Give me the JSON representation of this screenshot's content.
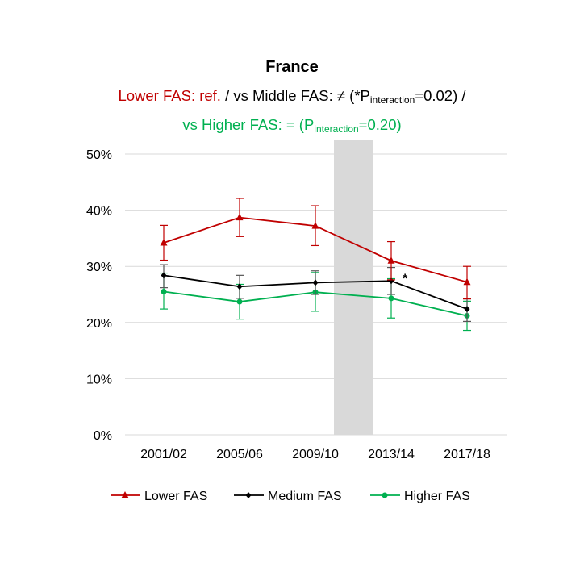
{
  "title": "France",
  "subtitle": {
    "line1_red": "Lower FAS: ref.",
    "line1_a": " / vs Middle FAS: ≠ (*P",
    "line1_sub": "interaction",
    "line1_b": "=0.02) /",
    "line2_a": "vs Higher FAS: = (P",
    "line2_sub": "interaction",
    "line2_b": "=0.20)"
  },
  "colors": {
    "lower": "#c00000",
    "medium": "#000000",
    "higher": "#00b050",
    "shade": "#d9d9d9",
    "grid": "#d9d9d9"
  },
  "chart_data": {
    "type": "line",
    "categories": [
      "2001/02",
      "2005/06",
      "2009/10",
      "2013/14",
      "2017/18"
    ],
    "y_tick_labels": [
      "0%",
      "10%",
      "20%",
      "30%",
      "40%",
      "50%"
    ],
    "ylim": [
      0,
      50
    ],
    "grid": true,
    "legend_position": "bottom",
    "shaded_region": {
      "from_category": "2009/10",
      "to_category": "2013/14"
    },
    "annotation": {
      "text": "*",
      "category": "2013/14",
      "series": "Medium FAS"
    },
    "series": [
      {
        "name": "Lower FAS",
        "color": "#c00000",
        "marker": "triangle",
        "values": [
          34.2,
          38.7,
          37.2,
          31.0,
          27.2
        ],
        "err_low": [
          31.1,
          35.3,
          33.7,
          27.6,
          24.2
        ],
        "err_high": [
          37.3,
          42.1,
          40.8,
          34.4,
          30.0
        ]
      },
      {
        "name": "Medium FAS",
        "color": "#000000",
        "marker": "diamond",
        "values": [
          28.4,
          26.4,
          27.1,
          27.4,
          22.4
        ],
        "err_low": [
          26.2,
          24.3,
          25.0,
          25.0,
          20.2
        ],
        "err_high": [
          30.3,
          28.4,
          29.2,
          29.8,
          24.2
        ]
      },
      {
        "name": "Higher FAS",
        "color": "#00b050",
        "marker": "circle",
        "values": [
          25.5,
          23.7,
          25.4,
          24.3,
          21.2
        ],
        "err_low": [
          22.4,
          20.6,
          22.0,
          20.8,
          18.6
        ],
        "err_high": [
          28.8,
          26.8,
          28.9,
          27.8,
          23.8
        ]
      }
    ]
  }
}
